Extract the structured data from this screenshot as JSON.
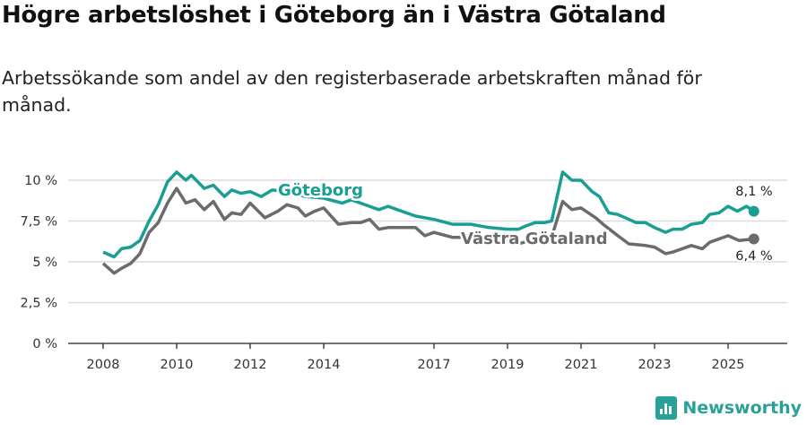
{
  "title": "Högre arbetslöshet i Göteborg än i Västra Götaland",
  "subtitle": "Arbetssökande som andel av den registerbaserade arbetskraften månad för månad.",
  "brand": "Newsworthy",
  "chart_data": {
    "type": "line",
    "ylim": [
      0,
      10
    ],
    "xlim": [
      2007.5,
      2026.6
    ],
    "yticks": [
      {
        "v": 0,
        "label": "0 %"
      },
      {
        "v": 2.5,
        "label": "2,5 %"
      },
      {
        "v": 5,
        "label": "5 %"
      },
      {
        "v": 7.5,
        "label": "7,5 %"
      },
      {
        "v": 10,
        "label": "10 %"
      }
    ],
    "xticks": [
      {
        "v": 2008,
        "label": "2008"
      },
      {
        "v": 2010,
        "label": "2010"
      },
      {
        "v": 2012,
        "label": "2012"
      },
      {
        "v": 2014,
        "label": "2014"
      },
      {
        "v": 2017,
        "label": "2017"
      },
      {
        "v": 2019,
        "label": "2019"
      },
      {
        "v": 2021,
        "label": "2021"
      },
      {
        "v": 2023,
        "label": "2023"
      },
      {
        "v": 2025,
        "label": "2025"
      }
    ],
    "grid": true,
    "series": [
      {
        "name": "Göteborg",
        "color": "#1a9e93",
        "end_label": "8,1 %",
        "x": [
          2008,
          2008.3,
          2008.5,
          2008.75,
          2009,
          2009.25,
          2009.5,
          2009.75,
          2010,
          2010.25,
          2010.4,
          2010.75,
          2011,
          2011.3,
          2011.5,
          2011.75,
          2012,
          2012.3,
          2012.6,
          2013,
          2013.5,
          2014,
          2014.5,
          2014.75,
          2015,
          2015.5,
          2015.75,
          2016,
          2016.5,
          2017,
          2017.5,
          2018,
          2018.5,
          2019,
          2019.3,
          2019.5,
          2019.75,
          2020,
          2020.2,
          2020.5,
          2020.75,
          2021,
          2021.3,
          2021.5,
          2021.75,
          2022,
          2022.5,
          2022.75,
          2023,
          2023.3,
          2023.5,
          2023.75,
          2024,
          2024.3,
          2024.5,
          2024.75,
          2025,
          2025.25,
          2025.5,
          2025.7
        ],
        "y": [
          5.6,
          5.3,
          5.8,
          5.9,
          6.3,
          7.5,
          8.5,
          9.9,
          10.5,
          10.0,
          10.3,
          9.5,
          9.7,
          9.0,
          9.4,
          9.2,
          9.3,
          9.0,
          9.4,
          9.3,
          9.0,
          8.9,
          8.6,
          8.8,
          8.6,
          8.2,
          8.4,
          8.2,
          7.8,
          7.6,
          7.3,
          7.3,
          7.1,
          7.0,
          7.0,
          7.2,
          7.4,
          7.4,
          7.5,
          10.5,
          10.0,
          10.0,
          9.3,
          9.0,
          8.0,
          7.9,
          7.4,
          7.4,
          7.1,
          6.8,
          7.0,
          7.0,
          7.3,
          7.4,
          7.9,
          8.0,
          8.4,
          8.1,
          8.4,
          8.1
        ]
      },
      {
        "name": "Västra Götaland",
        "color": "#6b6b6e",
        "end_label": "6,4 %",
        "x": [
          2008,
          2008.3,
          2008.5,
          2008.75,
          2009,
          2009.25,
          2009.5,
          2009.75,
          2010,
          2010.25,
          2010.5,
          2010.75,
          2011,
          2011.3,
          2011.5,
          2011.75,
          2012,
          2012.4,
          2012.75,
          2013,
          2013.3,
          2013.5,
          2013.75,
          2014,
          2014.4,
          2014.75,
          2015,
          2015.25,
          2015.5,
          2015.75,
          2016,
          2016.5,
          2016.75,
          2017,
          2017.5,
          2018,
          2018.5,
          2019,
          2019.3,
          2019.75,
          2020,
          2020.2,
          2020.5,
          2020.75,
          2021,
          2021.4,
          2021.6,
          2022,
          2022.3,
          2022.75,
          2023,
          2023.3,
          2023.5,
          2024,
          2024.3,
          2024.5,
          2025,
          2025.3,
          2025.7
        ],
        "y": [
          4.9,
          4.3,
          4.6,
          4.9,
          5.5,
          6.8,
          7.4,
          8.6,
          9.5,
          8.6,
          8.8,
          8.2,
          8.7,
          7.6,
          8.0,
          7.9,
          8.6,
          7.7,
          8.1,
          8.5,
          8.3,
          7.8,
          8.1,
          8.3,
          7.3,
          7.4,
          7.4,
          7.6,
          7.0,
          7.1,
          7.1,
          7.1,
          6.6,
          6.8,
          6.5,
          6.5,
          6.3,
          6.3,
          6.1,
          6.4,
          6.5,
          6.5,
          8.7,
          8.2,
          8.3,
          7.7,
          7.3,
          6.6,
          6.1,
          6.0,
          5.9,
          5.5,
          5.6,
          6.0,
          5.8,
          6.2,
          6.6,
          6.3,
          6.4
        ]
      }
    ]
  }
}
